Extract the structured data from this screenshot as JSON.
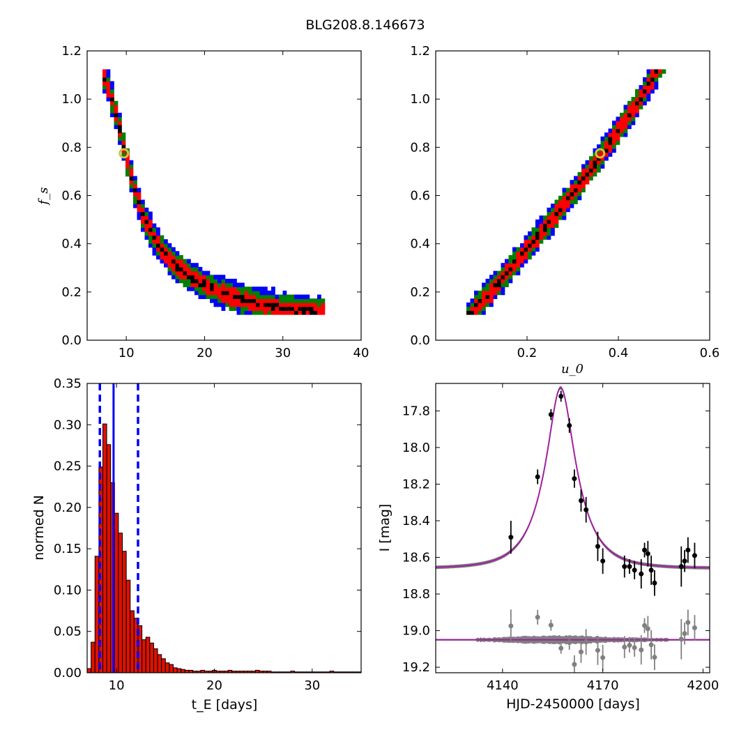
{
  "figure_title": "BLG208.8.146673",
  "colors": {
    "contour_3sigma": "#0000ff",
    "contour_2sigma": "#008000",
    "contour_1sigma": "#ff0000",
    "contour_core": "#000000",
    "best_fit_marker": "#c8c83c",
    "hist_bar": "#dd1100",
    "median_line": "#0000ff",
    "model_line": "#a020a0",
    "model_band": "#808080",
    "data_points": "#000000",
    "residual_points": "#808080"
  },
  "chart_data": [
    {
      "id": "fs-vs-tE",
      "type": "heatmap",
      "xlabel": "",
      "ylabel": "f_s",
      "xlim": [
        5,
        40
      ],
      "ylim": [
        0,
        1.2
      ],
      "xticks": [
        10,
        20,
        30,
        40
      ],
      "yticks": [
        0.0,
        0.2,
        0.4,
        0.6,
        0.8,
        1.0,
        1.2
      ],
      "best_fit": {
        "x": 9.7,
        "y": 0.775
      },
      "ridge": {
        "x": [
          7,
          8,
          9,
          10,
          11,
          12,
          13,
          14,
          16,
          18,
          20,
          22,
          24,
          26,
          28,
          30,
          32,
          35
        ],
        "y": [
          1.11,
          1.02,
          0.9,
          0.76,
          0.63,
          0.53,
          0.46,
          0.4,
          0.32,
          0.27,
          0.23,
          0.2,
          0.18,
          0.16,
          0.145,
          0.135,
          0.125,
          0.12
        ]
      },
      "levels": [
        "core",
        "1-sigma",
        "2-sigma",
        "3-sigma"
      ]
    },
    {
      "id": "fs-vs-u0",
      "type": "heatmap",
      "xlabel": "u_0",
      "ylabel": "",
      "xlim": [
        0,
        0.6
      ],
      "ylim": [
        0,
        1.2
      ],
      "xticks": [
        0.2,
        0.4,
        0.6
      ],
      "yticks": [
        0.0,
        0.2,
        0.4,
        0.6,
        0.8,
        1.0,
        1.2
      ],
      "best_fit": {
        "x": 0.36,
        "y": 0.775
      },
      "ridge": {
        "x": [
          0.08,
          0.12,
          0.16,
          0.2,
          0.24,
          0.28,
          0.32,
          0.36,
          0.4,
          0.44,
          0.48
        ],
        "y": [
          0.12,
          0.2,
          0.29,
          0.38,
          0.47,
          0.56,
          0.66,
          0.76,
          0.87,
          0.98,
          1.1
        ]
      },
      "levels": [
        "core",
        "1-sigma",
        "2-sigma",
        "3-sigma"
      ]
    },
    {
      "id": "tE-histogram",
      "type": "bar",
      "xlabel": "t_E [days]",
      "ylabel": "normed N",
      "xlim": [
        7,
        35
      ],
      "ylim": [
        0,
        0.35
      ],
      "xticks": [
        10,
        20,
        30
      ],
      "yticks": [
        "0.00",
        "0.05",
        "0.10",
        "0.15",
        "0.20",
        "0.25",
        "0.30",
        "0.35"
      ],
      "bin_start": 7.0,
      "bin_width": 0.4,
      "values": [
        0.005,
        0.037,
        0.141,
        0.249,
        0.301,
        0.276,
        0.23,
        0.193,
        0.169,
        0.147,
        0.112,
        0.075,
        0.066,
        0.057,
        0.04,
        0.043,
        0.036,
        0.029,
        0.022,
        0.017,
        0.012,
        0.01,
        0.006,
        0.005,
        0.004,
        0.003,
        0.003,
        0.002,
        0.002,
        0.003,
        0.002,
        0.002,
        0.003,
        0.002,
        0.002,
        0.002,
        0.003,
        0.002,
        0.002,
        0.002,
        0.002,
        0.002,
        0.002,
        0.003,
        0.002,
        0.002,
        0.002,
        0.001,
        0.001,
        0.001,
        0.001,
        0.001,
        0.002,
        0.001,
        0.001,
        0.001,
        0.001,
        0.001,
        0.001,
        0.001,
        0.001,
        0.001,
        0.002,
        0.001,
        0.001,
        0.001,
        0.001,
        0.001,
        0.001,
        0.001
      ],
      "median": 9.7,
      "bounds": [
        8.3,
        12.2
      ]
    },
    {
      "id": "light-curve",
      "type": "scatter",
      "xlabel": "HJD-2450000 [days]",
      "ylabel": "I [mag]",
      "xlim": [
        4120,
        4202
      ],
      "ylim": [
        19.23,
        17.65
      ],
      "xticks": [
        4140,
        4170,
        4200
      ],
      "yticks": [
        "17.8",
        "18.0",
        "18.2",
        "18.4",
        "18.6",
        "18.8",
        "19.0",
        "19.2"
      ],
      "model": {
        "t0": 4157.4,
        "u0": 0.36,
        "tE": 9.7,
        "fs": 0.775,
        "base_mag": 18.66
      },
      "residual_offset": 19.05,
      "data": [
        {
          "t": 4142.5,
          "mag": 18.49,
          "err": 0.09
        },
        {
          "t": 4150.5,
          "mag": 18.16,
          "err": 0.04
        },
        {
          "t": 4154.5,
          "mag": 17.82,
          "err": 0.03
        },
        {
          "t": 4157.5,
          "mag": 17.72,
          "err": 0.03
        },
        {
          "t": 4160.0,
          "mag": 17.88,
          "err": 0.04
        },
        {
          "t": 4161.5,
          "mag": 18.17,
          "err": 0.05
        },
        {
          "t": 4163.5,
          "mag": 18.29,
          "err": 0.06
        },
        {
          "t": 4165.0,
          "mag": 18.34,
          "err": 0.07
        },
        {
          "t": 4168.5,
          "mag": 18.54,
          "err": 0.08
        },
        {
          "t": 4170.0,
          "mag": 18.62,
          "err": 0.07
        },
        {
          "t": 4176.5,
          "mag": 18.65,
          "err": 0.06
        },
        {
          "t": 4178.0,
          "mag": 18.65,
          "err": 0.04
        },
        {
          "t": 4179.5,
          "mag": 18.67,
          "err": 0.05
        },
        {
          "t": 4181.5,
          "mag": 18.69,
          "err": 0.08
        },
        {
          "t": 4182.5,
          "mag": 18.56,
          "err": 0.04
        },
        {
          "t": 4183.5,
          "mag": 18.58,
          "err": 0.07
        },
        {
          "t": 4184.5,
          "mag": 18.67,
          "err": 0.08
        },
        {
          "t": 4185.5,
          "mag": 18.74,
          "err": 0.07
        },
        {
          "t": 4193.5,
          "mag": 18.65,
          "err": 0.11
        },
        {
          "t": 4194.5,
          "mag": 18.62,
          "err": 0.06
        },
        {
          "t": 4195.5,
          "mag": 18.56,
          "err": 0.07
        },
        {
          "t": 4197.5,
          "mag": 18.59,
          "err": 0.07
        }
      ]
    }
  ]
}
